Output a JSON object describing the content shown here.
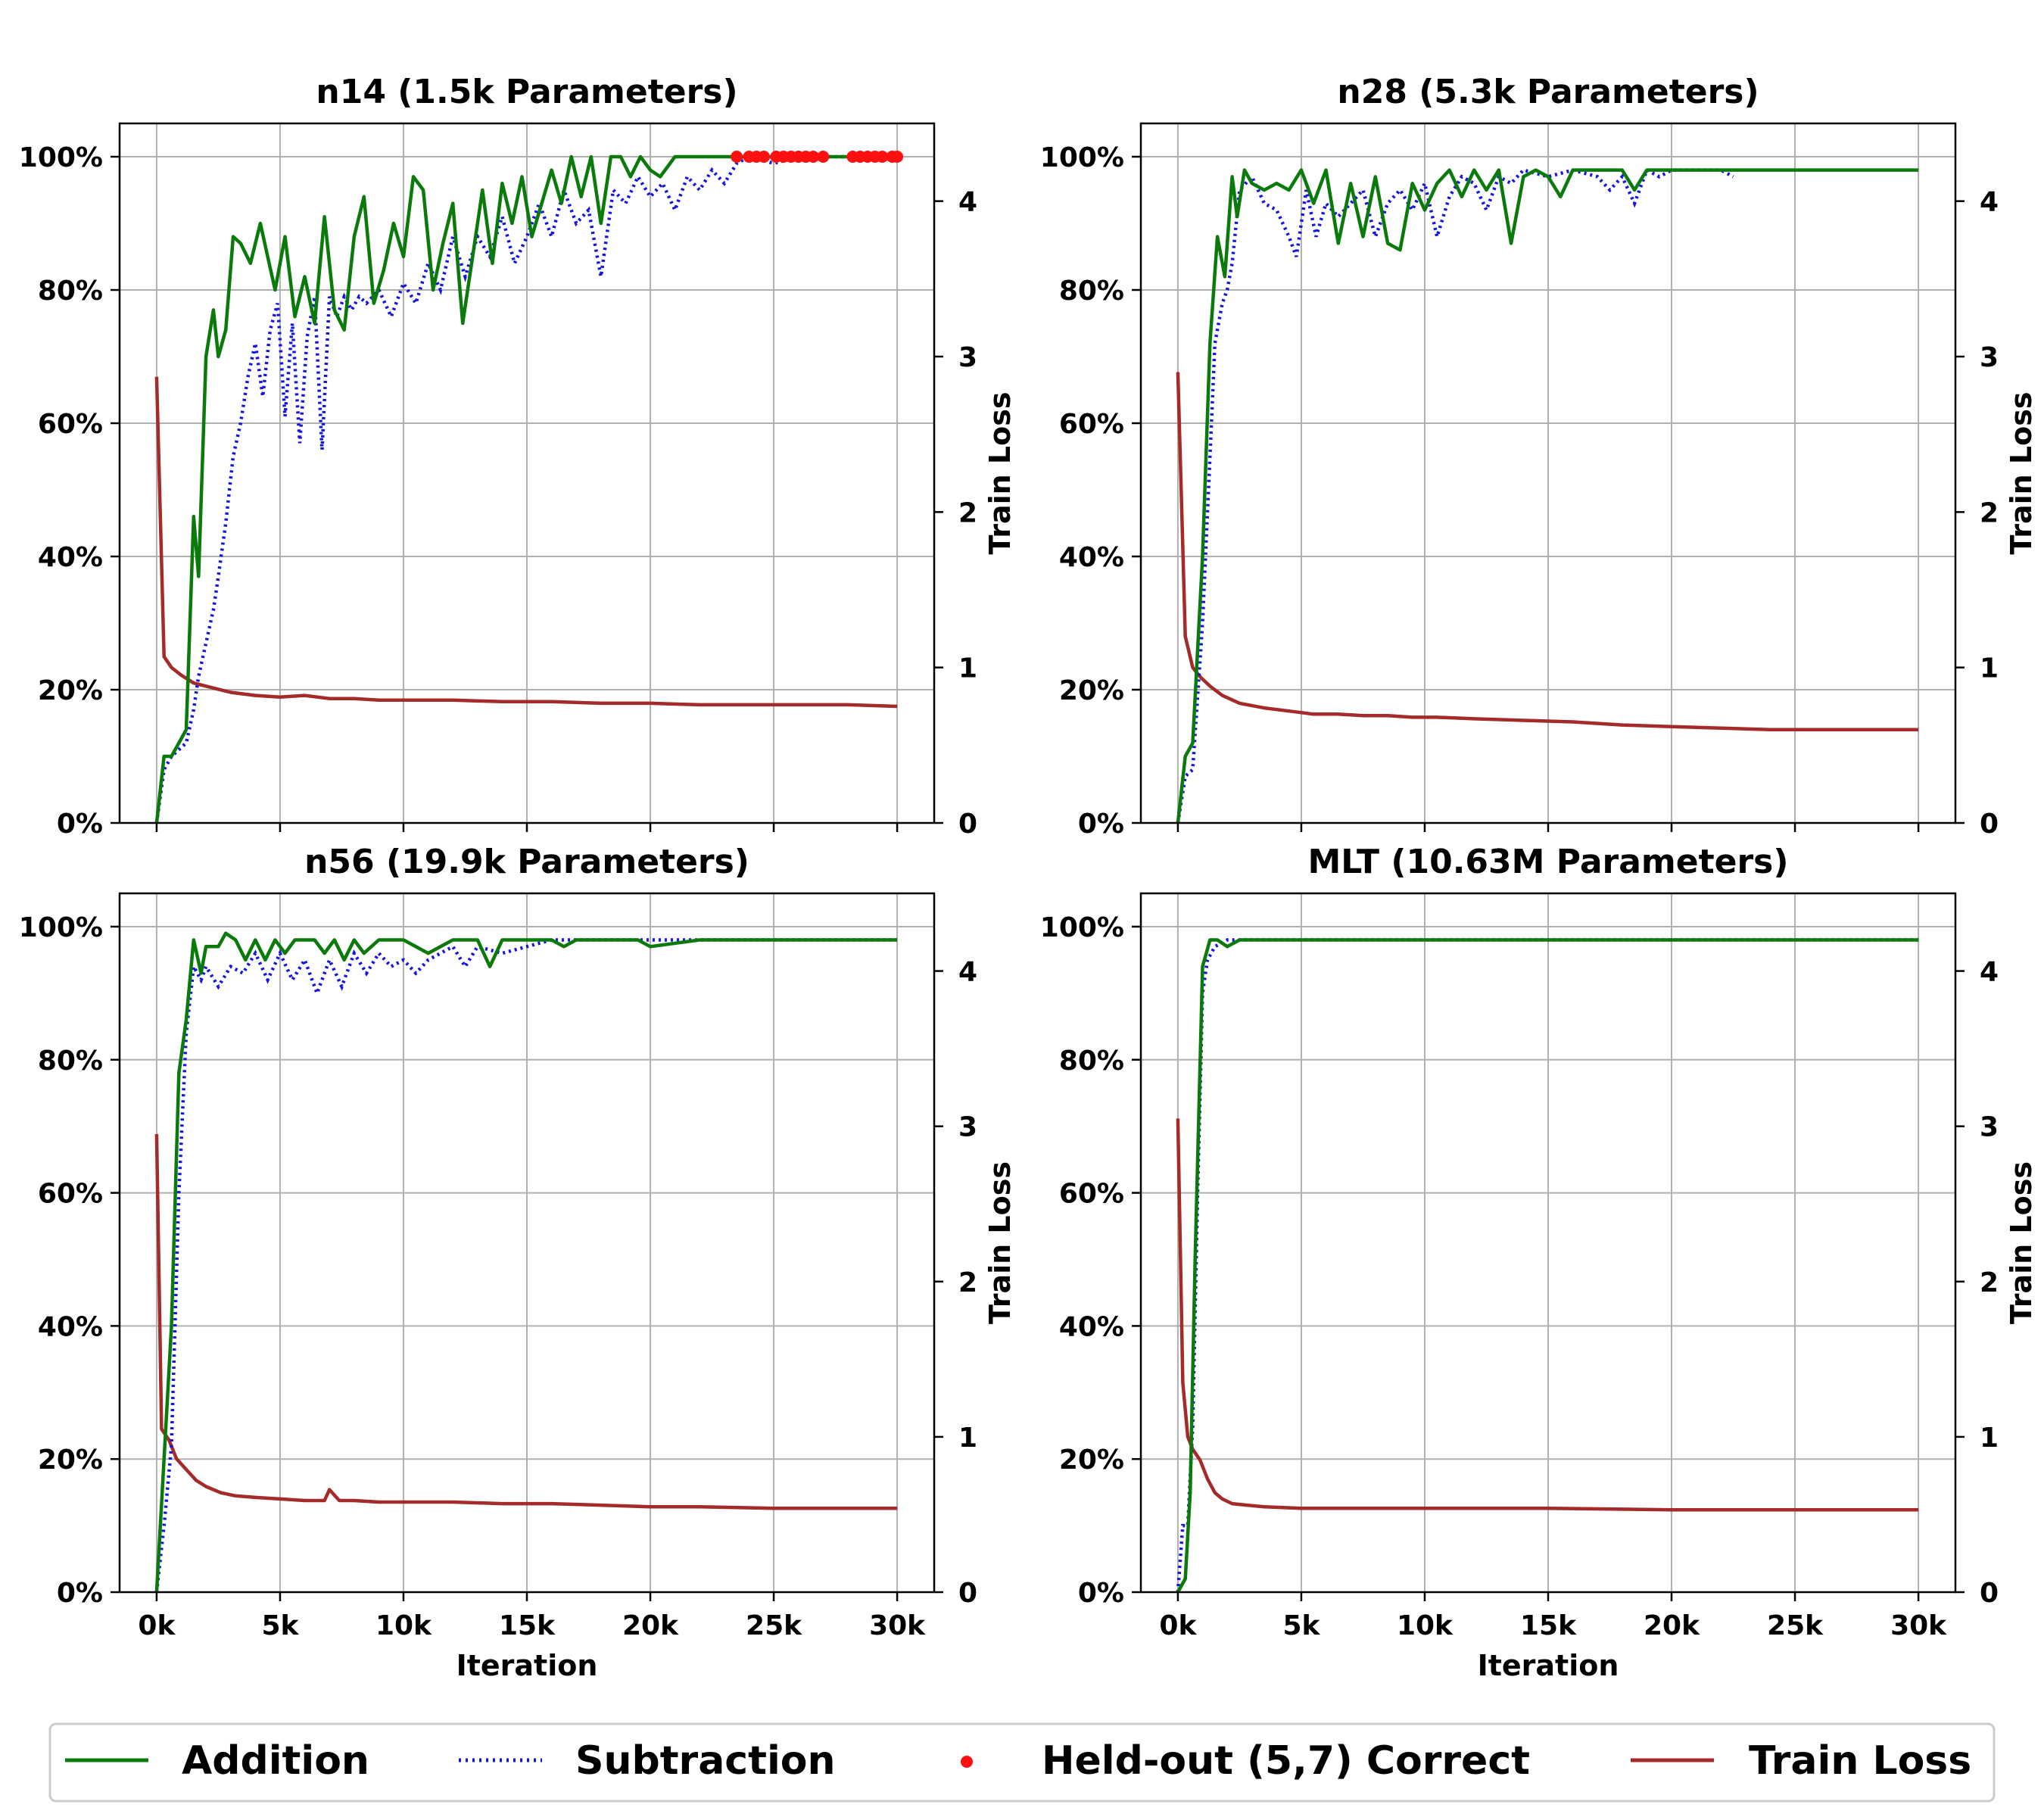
{
  "chart_data": [
    {
      "type": "line",
      "title": "n14 (1.5k Parameters)",
      "xlabel": "",
      "ylabel_right": "Train Loss",
      "xlim": [
        -1500,
        31500
      ],
      "ylim_left": [
        0,
        105
      ],
      "ylim_right": [
        0,
        4.5
      ],
      "x_ticks": [
        0,
        5000,
        10000,
        15000,
        20000,
        25000,
        30000
      ],
      "x_tick_labels": [],
      "y_ticks": [
        0,
        20,
        40,
        60,
        80,
        100
      ],
      "y_tick_labels": [
        "0%",
        "20%",
        "40%",
        "60%",
        "80%",
        "100%"
      ],
      "y2_ticks": [
        0,
        1,
        2,
        3,
        4
      ],
      "y2_tick_labels": [
        "0",
        "1",
        "2",
        "3",
        "4"
      ],
      "addition": {
        "x": [
          0,
          300,
          600,
          1200,
          1500,
          1700,
          2000,
          2300,
          2500,
          2800,
          3100,
          3400,
          3800,
          4200,
          4500,
          4800,
          5200,
          5600,
          6000,
          6400,
          6800,
          7200,
          7600,
          8000,
          8400,
          8800,
          9200,
          9600,
          10000,
          10400,
          10800,
          11200,
          11600,
          12000,
          12400,
          12800,
          13200,
          13600,
          14000,
          14400,
          14800,
          15200,
          15600,
          16000,
          16400,
          16800,
          17200,
          17600,
          18000,
          18400,
          18800,
          19200,
          19600,
          20000,
          20400,
          21000,
          22000,
          23000,
          24000,
          25000,
          26000,
          27000,
          28000,
          29000,
          30000
        ],
        "y": [
          0,
          10,
          10,
          14,
          46,
          37,
          70,
          77,
          70,
          74,
          88,
          87,
          84,
          90,
          85,
          80,
          88,
          76,
          82,
          75,
          91,
          77,
          74,
          88,
          94,
          78,
          83,
          90,
          85,
          97,
          95,
          80,
          87,
          93,
          75,
          85,
          95,
          84,
          96,
          90,
          97,
          88,
          93,
          98,
          93,
          100,
          94,
          100,
          90,
          100,
          100,
          97,
          100,
          98,
          97,
          100,
          100,
          100,
          100,
          100,
          100,
          100,
          100,
          100,
          100
        ]
      },
      "subtraction": {
        "x": [
          0,
          300,
          600,
          1200,
          1500,
          1700,
          2000,
          2300,
          2500,
          2800,
          3100,
          3400,
          3700,
          4000,
          4300,
          4600,
          4900,
          5200,
          5500,
          5800,
          6100,
          6400,
          6700,
          7000,
          7300,
          7600,
          7900,
          8200,
          8500,
          9000,
          9500,
          10000,
          10500,
          11000,
          11500,
          12000,
          12500,
          13000,
          13500,
          14000,
          14500,
          15000,
          15500,
          16000,
          16500,
          17000,
          17500,
          18000,
          18500,
          19000,
          19500,
          20000,
          20500,
          21000,
          21500,
          22000,
          22500,
          23000,
          23500,
          24000,
          25000,
          26000,
          27000,
          28000,
          29000,
          30000
        ],
        "y": [
          0,
          8,
          10,
          12,
          17,
          22,
          27,
          32,
          37,
          45,
          55,
          60,
          67,
          72,
          64,
          74,
          78,
          61,
          75,
          57,
          73,
          79,
          56,
          79,
          76,
          79,
          77,
          79,
          78,
          80,
          76,
          81,
          78,
          84,
          80,
          88,
          82,
          88,
          85,
          91,
          84,
          88,
          93,
          88,
          95,
          90,
          92,
          82,
          95,
          93,
          97,
          94,
          96,
          92,
          97,
          95,
          98,
          96,
          99,
          100,
          99,
          100,
          100,
          100,
          100,
          100
        ]
      },
      "train_loss": {
        "x": [
          0,
          300,
          600,
          1000,
          1500,
          2000,
          2500,
          3000,
          4000,
          5000,
          6000,
          7000,
          8000,
          9000,
          10000,
          12000,
          14000,
          16000,
          18000,
          20000,
          22000,
          25000,
          28000,
          30000
        ],
        "y": [
          2.87,
          1.07,
          1.0,
          0.95,
          0.9,
          0.88,
          0.86,
          0.84,
          0.82,
          0.81,
          0.82,
          0.8,
          0.8,
          0.79,
          0.79,
          0.79,
          0.78,
          0.78,
          0.77,
          0.77,
          0.76,
          0.76,
          0.76,
          0.75
        ]
      },
      "held_out": {
        "x": [
          23500,
          24000,
          24300,
          24600,
          25100,
          25400,
          25700,
          26000,
          26300,
          26600,
          27000,
          28200,
          28500,
          28800,
          29100,
          29400,
          29800,
          30000
        ],
        "y": [
          100,
          100,
          100,
          100,
          100,
          100,
          100,
          100,
          100,
          100,
          100,
          100,
          100,
          100,
          100,
          100,
          100,
          100
        ]
      }
    },
    {
      "type": "line",
      "title": "n28 (5.3k Parameters)",
      "xlabel": "",
      "ylabel_right": "Train Loss",
      "xlim": [
        -1500,
        31500
      ],
      "ylim_left": [
        0,
        105
      ],
      "ylim_right": [
        0,
        4.5
      ],
      "x_ticks": [
        0,
        5000,
        10000,
        15000,
        20000,
        25000,
        30000
      ],
      "x_tick_labels": [],
      "y_ticks": [
        0,
        20,
        40,
        60,
        80,
        100
      ],
      "y_tick_labels": [
        "0%",
        "20%",
        "40%",
        "60%",
        "80%",
        "100%"
      ],
      "y2_ticks": [
        0,
        1,
        2,
        3,
        4
      ],
      "y2_tick_labels": [
        "0",
        "1",
        "2",
        "3",
        "4"
      ],
      "addition": {
        "x": [
          0,
          300,
          600,
          1000,
          1300,
          1600,
          1900,
          2200,
          2400,
          2700,
          3000,
          3500,
          4000,
          4500,
          5000,
          5500,
          6000,
          6500,
          7000,
          7500,
          8000,
          8500,
          9000,
          9500,
          10000,
          10500,
          11000,
          11500,
          12000,
          12500,
          13000,
          13500,
          14000,
          14500,
          15000,
          15500,
          16000,
          17000,
          18000,
          18500,
          19000,
          20000,
          22000,
          24000,
          26000,
          28000,
          30000
        ],
        "y": [
          0,
          10,
          12,
          40,
          72,
          88,
          82,
          97,
          91,
          98,
          96,
          95,
          96,
          95,
          98,
          93,
          98,
          87,
          96,
          88,
          97,
          87,
          86,
          96,
          92,
          96,
          98,
          94,
          98,
          95,
          98,
          87,
          97,
          98,
          97,
          94,
          98,
          98,
          98,
          95,
          98,
          98,
          98,
          98,
          98,
          98,
          98
        ]
      },
      "subtraction": {
        "x": [
          0,
          300,
          600,
          1000,
          1300,
          1500,
          1800,
          2000,
          2200,
          2500,
          3000,
          3500,
          4000,
          4500,
          4800,
          5200,
          5600,
          6000,
          6500,
          7000,
          7500,
          8000,
          8500,
          9000,
          9500,
          10000,
          10500,
          11000,
          11500,
          12000,
          12500,
          13000,
          13500,
          14000,
          15000,
          16000,
          17000,
          17500,
          18000,
          18500,
          19000,
          19500,
          20000,
          21000,
          22000,
          22500
        ],
        "y": [
          0,
          7,
          8,
          30,
          55,
          72,
          78,
          80,
          84,
          95,
          97,
          93,
          92,
          88,
          85,
          95,
          88,
          93,
          91,
          93,
          95,
          88,
          93,
          95,
          92,
          96,
          88,
          94,
          97,
          96,
          92,
          97,
          96,
          98,
          97,
          98,
          97,
          95,
          97,
          93,
          98,
          97,
          98,
          98,
          98,
          97
        ]
      },
      "train_loss": {
        "x": [
          0,
          300,
          600,
          900,
          1300,
          1800,
          2500,
          3500,
          4500,
          5500,
          6500,
          7500,
          8500,
          9500,
          10500,
          12000,
          14000,
          16000,
          18000,
          20000,
          22000,
          24000,
          26000,
          28000,
          30000
        ],
        "y": [
          2.9,
          1.2,
          1.0,
          0.94,
          0.88,
          0.82,
          0.77,
          0.74,
          0.72,
          0.7,
          0.7,
          0.69,
          0.69,
          0.68,
          0.68,
          0.67,
          0.66,
          0.65,
          0.63,
          0.62,
          0.61,
          0.6,
          0.6,
          0.6,
          0.6
        ]
      },
      "held_out": {
        "x": [],
        "y": []
      }
    },
    {
      "type": "line",
      "title": "n56 (19.9k Parameters)",
      "xlabel": "Iteration",
      "ylabel_right": "Train Loss",
      "xlim": [
        -1500,
        31500
      ],
      "ylim_left": [
        0,
        105
      ],
      "ylim_right": [
        0,
        4.5
      ],
      "x_ticks": [
        0,
        5000,
        10000,
        15000,
        20000,
        25000,
        30000
      ],
      "x_tick_labels": [
        "0k",
        "5k",
        "10k",
        "15k",
        "20k",
        "25k",
        "30k"
      ],
      "y_ticks": [
        0,
        20,
        40,
        60,
        80,
        100
      ],
      "y_tick_labels": [
        "0%",
        "20%",
        "40%",
        "60%",
        "80%",
        "100%"
      ],
      "y2_ticks": [
        0,
        1,
        2,
        3,
        4
      ],
      "y2_tick_labels": [
        "0",
        "1",
        "2",
        "3",
        "4"
      ],
      "addition": {
        "x": [
          0,
          300,
          600,
          900,
          1200,
          1500,
          1800,
          2000,
          2500,
          2800,
          3200,
          3600,
          4000,
          4400,
          4800,
          5200,
          5600,
          6000,
          6400,
          6800,
          7200,
          7600,
          8000,
          8400,
          9000,
          10000,
          11000,
          12000,
          12500,
          13000,
          13500,
          14000,
          15000,
          16000,
          16500,
          17000,
          18000,
          19000,
          19500,
          20000,
          22000,
          25000,
          28000,
          30000
        ],
        "y": [
          0,
          20,
          40,
          78,
          86,
          98,
          93,
          97,
          97,
          99,
          98,
          95,
          98,
          95,
          98,
          96,
          98,
          98,
          98,
          96,
          98,
          95,
          98,
          96,
          98,
          98,
          96,
          98,
          98,
          98,
          94,
          98,
          98,
          98,
          97,
          98,
          98,
          98,
          98,
          97,
          98,
          98,
          98,
          98
        ]
      },
      "subtraction": {
        "x": [
          0,
          300,
          600,
          900,
          1200,
          1500,
          1800,
          2000,
          2500,
          3000,
          3500,
          4000,
          4500,
          5000,
          5500,
          6000,
          6500,
          7000,
          7500,
          8000,
          8500,
          9000,
          9500,
          10000,
          10500,
          11000,
          11500,
          12000,
          12500,
          13000,
          14000,
          15000,
          16000,
          17000,
          18000,
          19000,
          20000,
          22000,
          25000,
          28000,
          30000
        ],
        "y": [
          0,
          10,
          22,
          60,
          84,
          94,
          92,
          94,
          91,
          94,
          93,
          96,
          92,
          96,
          92,
          95,
          90,
          95,
          91,
          96,
          93,
          96,
          94,
          95,
          93,
          95,
          96,
          97,
          94,
          97,
          96,
          97,
          98,
          98,
          98,
          98,
          98,
          98,
          98,
          98,
          98
        ]
      },
      "train_loss": {
        "x": [
          0,
          200,
          500,
          800,
          1200,
          1600,
          2000,
          2600,
          3200,
          4000,
          5000,
          6000,
          6800,
          7000,
          7400,
          8000,
          9000,
          10000,
          11000,
          12000,
          14000,
          16000,
          18000,
          20000,
          22000,
          25000,
          28000,
          30000
        ],
        "y": [
          2.95,
          1.05,
          0.98,
          0.86,
          0.79,
          0.72,
          0.68,
          0.64,
          0.62,
          0.61,
          0.6,
          0.59,
          0.59,
          0.66,
          0.59,
          0.59,
          0.58,
          0.58,
          0.58,
          0.58,
          0.57,
          0.57,
          0.56,
          0.55,
          0.55,
          0.54,
          0.54,
          0.54
        ]
      },
      "held_out": {
        "x": [],
        "y": []
      }
    },
    {
      "type": "line",
      "title": "MLT (10.63M Parameters)",
      "xlabel": "Iteration",
      "ylabel_right": "Train Loss",
      "xlim": [
        -1500,
        31500
      ],
      "ylim_left": [
        0,
        105
      ],
      "ylim_right": [
        0,
        4.5
      ],
      "x_ticks": [
        0,
        5000,
        10000,
        15000,
        20000,
        25000,
        30000
      ],
      "x_tick_labels": [
        "0k",
        "5k",
        "10k",
        "15k",
        "20k",
        "25k",
        "30k"
      ],
      "y_ticks": [
        0,
        20,
        40,
        60,
        80,
        100
      ],
      "y_tick_labels": [
        "0%",
        "20%",
        "40%",
        "60%",
        "80%",
        "100%"
      ],
      "y2_ticks": [
        0,
        1,
        2,
        3,
        4
      ],
      "y2_tick_labels": [
        "0",
        "1",
        "2",
        "3",
        "4"
      ],
      "addition": {
        "x": [
          0,
          300,
          500,
          700,
          1000,
          1300,
          1600,
          2000,
          2500,
          3000,
          5000,
          10000,
          15000,
          20000,
          25000,
          30000
        ],
        "y": [
          0,
          2,
          15,
          50,
          94,
          98,
          98,
          97,
          98,
          98,
          98,
          98,
          98,
          98,
          98,
          98
        ]
      },
      "subtraction": {
        "x": [
          0,
          200,
          400,
          600,
          800,
          1000,
          1200,
          1500,
          2000,
          2500,
          3000,
          5000,
          10000,
          15000,
          20000,
          25000,
          30000
        ],
        "y": [
          0,
          10,
          10,
          25,
          60,
          90,
          95,
          97,
          98,
          98,
          98,
          98,
          98,
          98,
          98,
          98,
          98
        ]
      },
      "train_loss": {
        "x": [
          0,
          200,
          400,
          600,
          900,
          1200,
          1500,
          1800,
          2200,
          2800,
          3500,
          5000,
          10000,
          15000,
          20000,
          25000,
          30000
        ],
        "y": [
          3.05,
          1.35,
          1.0,
          0.92,
          0.85,
          0.73,
          0.64,
          0.6,
          0.57,
          0.56,
          0.55,
          0.54,
          0.54,
          0.54,
          0.53,
          0.53,
          0.53
        ]
      },
      "held_out": {
        "x": [],
        "y": []
      }
    }
  ],
  "legend": {
    "addition": "Addition",
    "subtraction": "Subtraction",
    "held_out": "Held-out (5,7) Correct",
    "train_loss": "Train Loss"
  },
  "colors": {
    "addition": "#0a7a0a",
    "subtraction": "#1515e0",
    "held_out": "#ff1010",
    "train_loss": "#a52a2a",
    "grid": "#b0b0b0"
  }
}
